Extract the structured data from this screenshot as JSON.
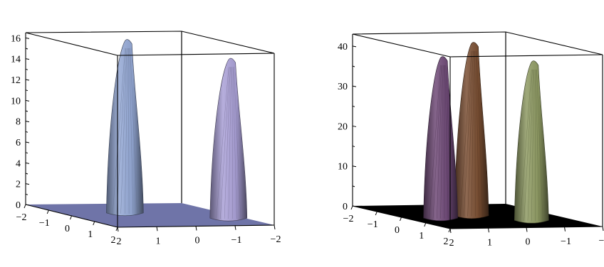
{
  "chart_data": [
    {
      "type": "surface",
      "title": "",
      "xlabel": "",
      "ylabel": "",
      "zlabel": "",
      "x_range": [
        -2,
        2
      ],
      "y_range": [
        -2,
        2
      ],
      "zlim": [
        0,
        16.5
      ],
      "z_ticks": [
        0,
        2,
        4,
        6,
        8,
        10,
        12,
        14,
        16
      ],
      "x_ticks": [
        -2,
        -1,
        0,
        1,
        2
      ],
      "y_ticks": [
        2,
        1,
        0,
        -1,
        -2
      ],
      "grid": false,
      "floor_color": "#6f74a8",
      "peaks": [
        {
          "x": 0.7,
          "y": 1.6,
          "height": 15.2,
          "color": "#a9a0d6"
        },
        {
          "x": -0.4,
          "y": -0.4,
          "height": 16.5,
          "color": "#93a7d4"
        }
      ]
    },
    {
      "type": "surface",
      "title": "",
      "xlabel": "",
      "ylabel": "",
      "zlabel": "",
      "x_range": [
        -2,
        2
      ],
      "y_range": [
        -2,
        2
      ],
      "zlim": [
        0,
        43
      ],
      "z_ticks": [
        0,
        10,
        20,
        30,
        40
      ],
      "x_ticks": [
        -2,
        -1,
        0,
        1,
        2
      ],
      "y_ticks": [
        2,
        1,
        0,
        -1,
        -2
      ],
      "grid": false,
      "floor_color": "#000000",
      "peaks": [
        {
          "x": 0.8,
          "y": 0.9,
          "height": 39.5,
          "color": "#8e9a63"
        },
        {
          "x": -0.1,
          "y": -0.1,
          "height": 43,
          "color": "#7a4f33"
        },
        {
          "x": 0.2,
          "y": -1.1,
          "height": 40,
          "color": "#6f4a77"
        }
      ]
    }
  ]
}
